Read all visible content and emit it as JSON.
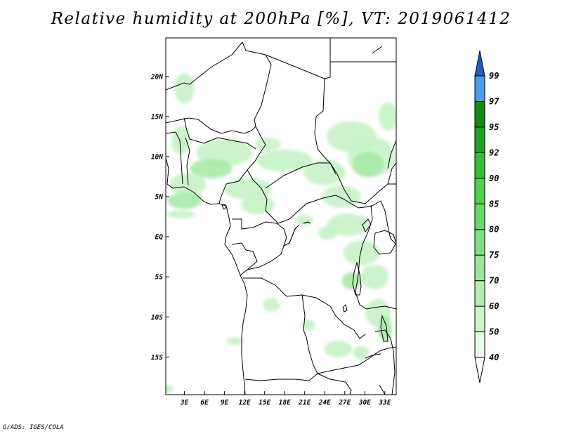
{
  "map": {
    "title": "Relative humidity at 200hPa [%], VT: 2019061412",
    "credit": "GrADS: IGES/COLA",
    "lat_labels": [
      "20N",
      "15N",
      "10N",
      "5N",
      "EQ",
      "5S",
      "10S",
      "15S"
    ],
    "lat_values": [
      20,
      15,
      10,
      5,
      0,
      -5,
      -10,
      -15
    ],
    "lon_labels": [
      "3E",
      "6E",
      "9E",
      "12E",
      "15E",
      "18E",
      "21E",
      "24E",
      "27E",
      "30E",
      "33E"
    ],
    "lon_values": [
      3,
      6,
      9,
      12,
      15,
      18,
      21,
      24,
      27,
      30,
      33
    ],
    "domain": {
      "lon_min": 0.2,
      "lon_max": 34.7,
      "lat_min": -19.7,
      "lat_max": 24.8
    }
  },
  "colorbar": {
    "labels": [
      "40",
      "50",
      "60",
      "70",
      "75",
      "80",
      "85",
      "90",
      "92",
      "95",
      "97",
      "99"
    ],
    "colors": [
      "#ffffff",
      "#e6f9e6",
      "#cdf3cd",
      "#b3edb3",
      "#9ae69a",
      "#80e080",
      "#66d966",
      "#4dd14d",
      "#33c033",
      "#1fa31f",
      "#138c13",
      "#4a9de8",
      "#2f7fe0",
      "#1f5cc4"
    ]
  },
  "field_colors": {
    "light": "#c8f2c8",
    "mid": "#a9e9a9",
    "darker": "#93e093"
  }
}
